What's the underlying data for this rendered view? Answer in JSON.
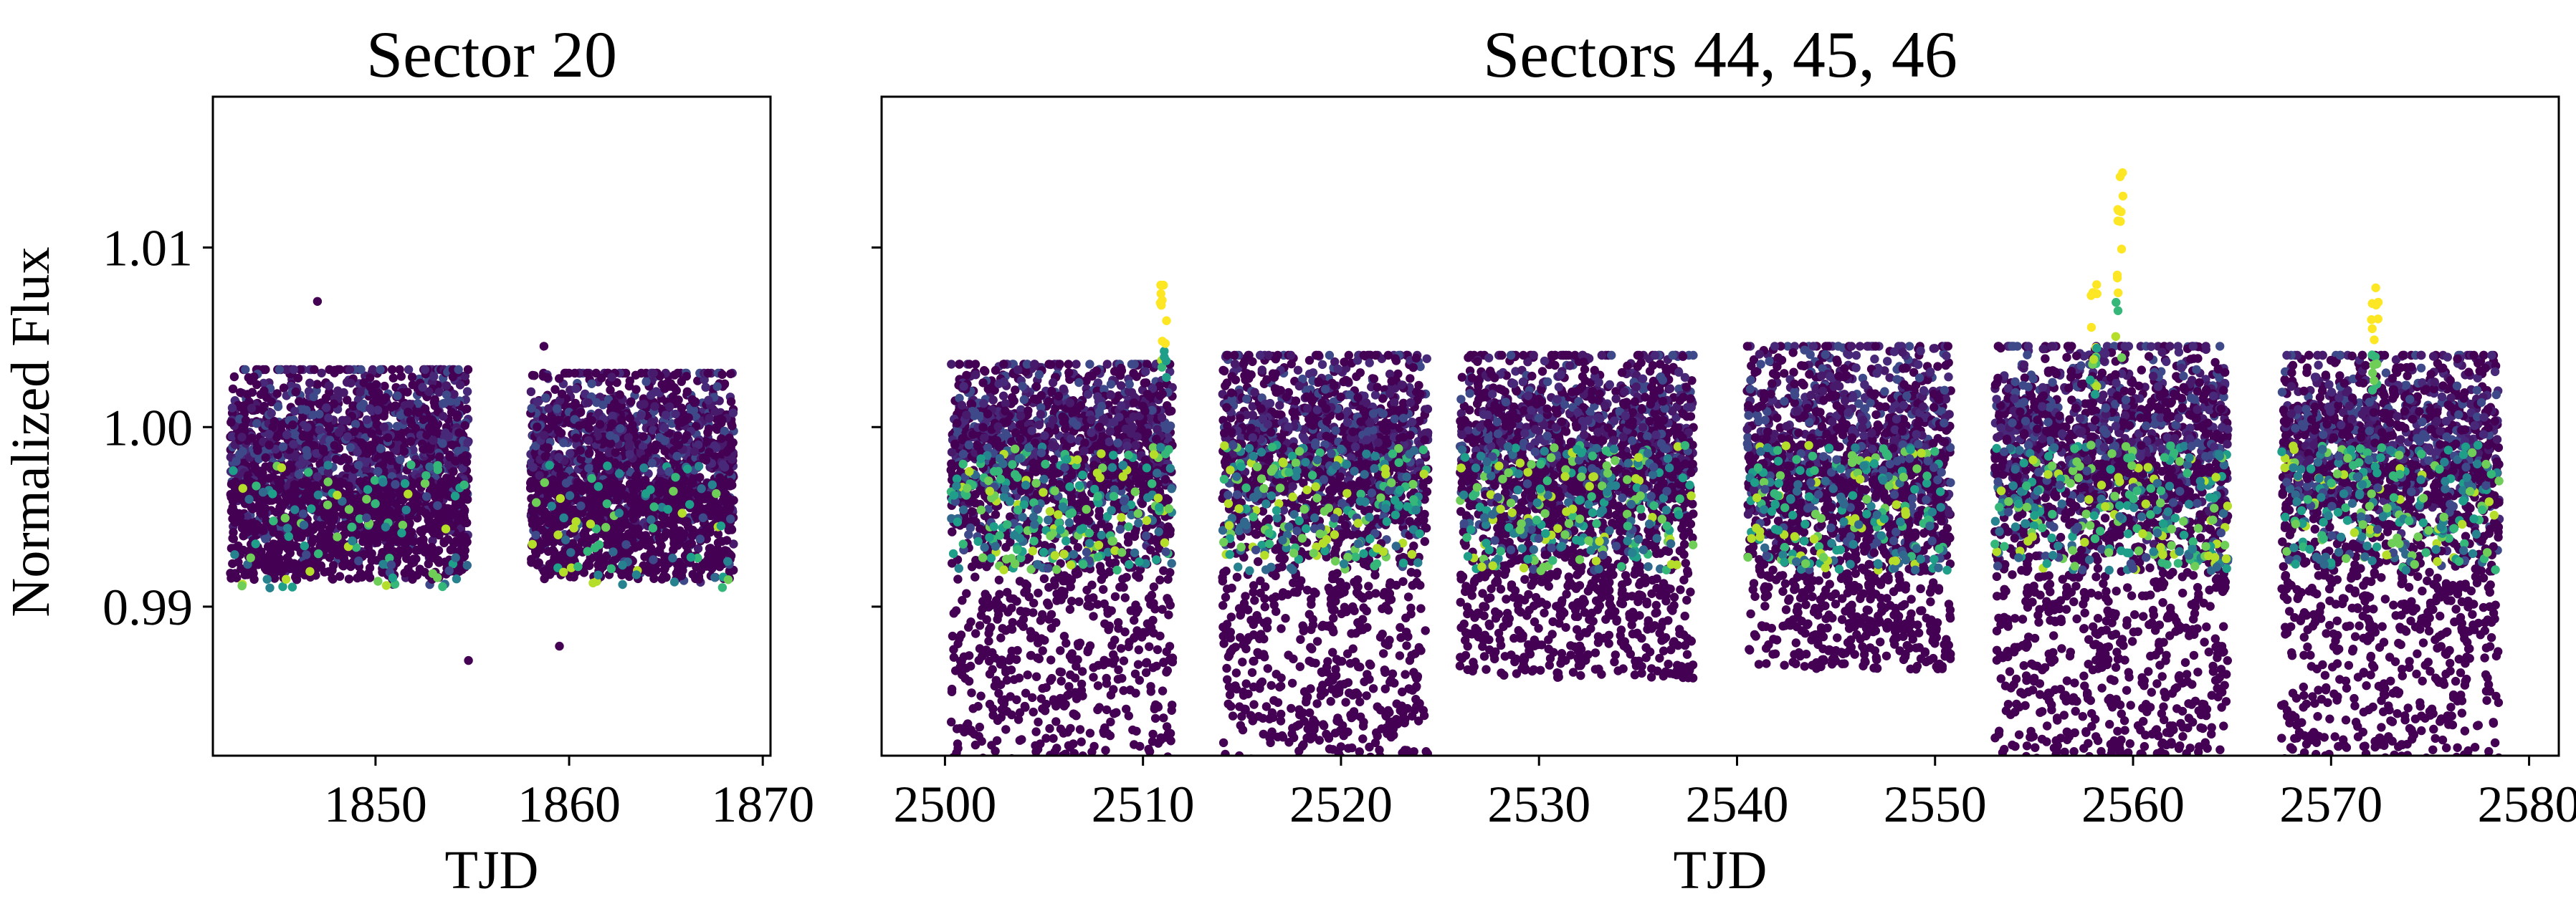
{
  "figure": {
    "ylabel": "Normalized Flux",
    "ylim": [
      0.9817,
      1.0184
    ],
    "yticks": [
      {
        "value": 0.99,
        "label": "0.99"
      },
      {
        "value": 1.0,
        "label": "1.00"
      },
      {
        "value": 1.01,
        "label": "1.01"
      }
    ]
  },
  "chart_data": [
    {
      "type": "scatter",
      "title": "Sector 20",
      "xlabel": "TJD",
      "ylabel": "Normalized Flux",
      "xlim": [
        1841.6,
        1870.4
      ],
      "ylim": [
        0.9817,
        1.0184
      ],
      "xticks": [
        {
          "value": 1850,
          "label": "1850"
        },
        {
          "value": 1860,
          "label": "1860"
        },
        {
          "value": 1870,
          "label": "1870"
        }
      ],
      "colormap": "viridis",
      "segments": [
        {
          "x_start": 1842.5,
          "x_end": 1854.8,
          "y_center": 0.9985,
          "y_top": 1.0032,
          "y_bottom": 0.9915
        },
        {
          "x_start": 1858.0,
          "x_end": 1868.5,
          "y_center": 0.9985,
          "y_top": 1.003,
          "y_bottom": 0.9915
        }
      ],
      "outliers": [
        {
          "x": 1847.0,
          "y": 1.007
        },
        {
          "x": 1854.8,
          "y": 0.987
        },
        {
          "x": 1859.5,
          "y": 0.9878
        },
        {
          "x": 1858.7,
          "y": 1.0045
        }
      ]
    },
    {
      "type": "scatter",
      "title": "Sectors 44, 45, 46",
      "xlabel": "TJD",
      "ylabel": "",
      "xlim": [
        2496.8,
        2581.5
      ],
      "ylim": [
        0.9817,
        1.0184
      ],
      "xticks": [
        {
          "value": 2500,
          "label": "2500"
        },
        {
          "value": 2510,
          "label": "2510"
        },
        {
          "value": 2520,
          "label": "2520"
        },
        {
          "value": 2530,
          "label": "2530"
        },
        {
          "value": 2540,
          "label": "2540"
        },
        {
          "value": 2550,
          "label": "2550"
        },
        {
          "value": 2560,
          "label": "2560"
        },
        {
          "value": 2570,
          "label": "2570"
        },
        {
          "value": 2580,
          "label": "2580"
        }
      ],
      "colormap": "viridis",
      "segments": [
        {
          "x_start": 2500.3,
          "x_end": 2511.5,
          "y_center": 0.9995,
          "y_top": 1.0035,
          "y_bottom": 0.981
        },
        {
          "x_start": 2514.0,
          "x_end": 2524.4,
          "y_center": 0.9995,
          "y_top": 1.004,
          "y_bottom": 0.981
        },
        {
          "x_start": 2526.0,
          "x_end": 2537.8,
          "y_center": 0.9995,
          "y_top": 1.004,
          "y_bottom": 0.986
        },
        {
          "x_start": 2540.5,
          "x_end": 2550.8,
          "y_center": 0.9995,
          "y_top": 1.0045,
          "y_bottom": 0.9865
        },
        {
          "x_start": 2553.0,
          "x_end": 2564.8,
          "y_center": 0.9995,
          "y_top": 1.0045,
          "y_bottom": 0.981
        },
        {
          "x_start": 2567.5,
          "x_end": 2578.5,
          "y_center": 0.9995,
          "y_top": 1.004,
          "y_bottom": 0.981
        }
      ],
      "flares": [
        {
          "x": 2511.0,
          "y_peak": 1.0083
        },
        {
          "x": 2559.3,
          "y_peak": 1.0146
        },
        {
          "x": 2558.0,
          "y_peak": 1.008
        },
        {
          "x": 2572.2,
          "y_peak": 1.008
        }
      ]
    }
  ]
}
